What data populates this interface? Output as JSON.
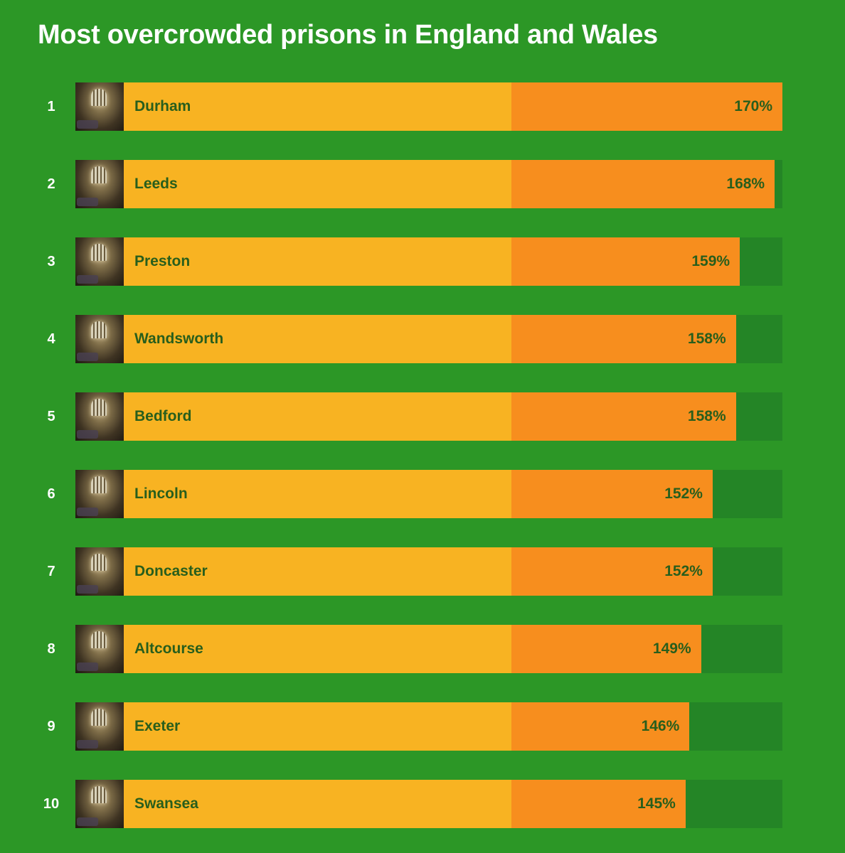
{
  "colors": {
    "background": "#2c9726",
    "track": "#248526",
    "base_bar": "#f8b322",
    "overcrowded_bar": "#f78e1e",
    "label_text": "#285e1c",
    "title_text": "#ffffff"
  },
  "icons": {
    "row_thumbnail": "prison-cell-photo"
  },
  "chart_data": {
    "type": "bar",
    "orientation": "horizontal",
    "title": "Most overcrowded prisons in England and Wales",
    "value_suffix": "%",
    "categories": [
      "Durham",
      "Leeds",
      "Preston",
      "Wandsworth",
      "Bedford",
      "Lincoln",
      "Doncaster",
      "Altcourse",
      "Exeter",
      "Swansea"
    ],
    "ranks": [
      "1",
      "2",
      "3",
      "4",
      "5",
      "6",
      "7",
      "8",
      "9",
      "10"
    ],
    "values": [
      170,
      168,
      159,
      158,
      158,
      152,
      152,
      149,
      146,
      145
    ],
    "value_labels": [
      "170%",
      "168%",
      "159%",
      "158%",
      "158%",
      "152%",
      "152%",
      "149%",
      "146%",
      "145%"
    ],
    "xlim": [
      0,
      170
    ],
    "reference_value": 100,
    "grid": false,
    "legend": "none"
  }
}
